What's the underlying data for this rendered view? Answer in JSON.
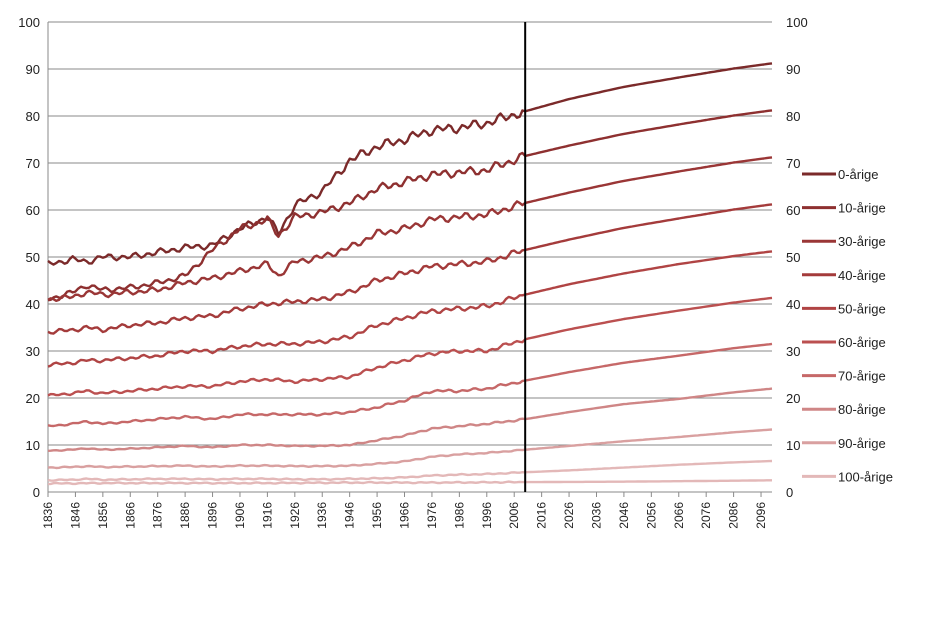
{
  "chart_data": {
    "type": "line",
    "title": "",
    "xlabel": "",
    "ylabel": "",
    "ylim": [
      0,
      100
    ],
    "xlim": [
      1836,
      2100
    ],
    "y_ticks": [
      0,
      10,
      20,
      30,
      40,
      50,
      60,
      70,
      80,
      90,
      100
    ],
    "y_tick_labels": [
      "0",
      "10",
      "20",
      "30",
      "40",
      "50",
      "60",
      "70",
      "80",
      "90",
      "100"
    ],
    "x_ticks": [
      "1836",
      "1846",
      "1856",
      "1866",
      "1876",
      "1886",
      "1896",
      "1906",
      "1916",
      "1926",
      "1936",
      "1946",
      "1956",
      "1966",
      "1976",
      "1986",
      "1996",
      "2006",
      "2016",
      "2026",
      "2036",
      "2046",
      "2056",
      "2066",
      "2076",
      "2086",
      "2096"
    ],
    "grid": "horizontal",
    "secondary_y_axis": true,
    "legend_position": "right",
    "vertical_marker_x": 2010,
    "series": [
      {
        "name": "0-årige",
        "color": "#7b2a2a",
        "points": [
          [
            1836,
            48.5
          ],
          [
            1845,
            49.5
          ],
          [
            1850,
            49
          ],
          [
            1856,
            50
          ],
          [
            1866,
            50
          ],
          [
            1876,
            51
          ],
          [
            1886,
            52
          ],
          [
            1896,
            52.5
          ],
          [
            1906,
            56
          ],
          [
            1916,
            58.5
          ],
          [
            1920,
            55
          ],
          [
            1926,
            61
          ],
          [
            1936,
            64
          ],
          [
            1946,
            70.5
          ],
          [
            1956,
            73.5
          ],
          [
            1966,
            75
          ],
          [
            1976,
            77
          ],
          [
            1986,
            77.5
          ],
          [
            1996,
            78.5
          ],
          [
            2010,
            81
          ],
          [
            2026,
            83.6
          ],
          [
            2046,
            86.2
          ],
          [
            2066,
            88.2
          ],
          [
            2086,
            90.1
          ],
          [
            2100,
            91.2
          ]
        ]
      },
      {
        "name": "10-årige",
        "color": "#8e3030",
        "points": [
          [
            1836,
            41
          ],
          [
            1845,
            42.5
          ],
          [
            1850,
            44
          ],
          [
            1856,
            43
          ],
          [
            1866,
            43.5
          ],
          [
            1876,
            44.5
          ],
          [
            1886,
            46
          ],
          [
            1896,
            51.5
          ],
          [
            1906,
            56
          ],
          [
            1916,
            58
          ],
          [
            1920,
            54.5
          ],
          [
            1926,
            58.5
          ],
          [
            1936,
            59.5
          ],
          [
            1946,
            61.5
          ],
          [
            1956,
            64.5
          ],
          [
            1966,
            66
          ],
          [
            1976,
            67.5
          ],
          [
            1986,
            68
          ],
          [
            1996,
            68.5
          ],
          [
            2010,
            71.5
          ],
          [
            2026,
            73.7
          ],
          [
            2046,
            76.2
          ],
          [
            2066,
            78.2
          ],
          [
            2086,
            80.1
          ],
          [
            2100,
            81.2
          ]
        ]
      },
      {
        "name": "30-årige",
        "color": "#9a3636",
        "points": [
          [
            1836,
            41
          ],
          [
            1845,
            41.5
          ],
          [
            1850,
            42.5
          ],
          [
            1856,
            42
          ],
          [
            1866,
            42.5
          ],
          [
            1876,
            43
          ],
          [
            1886,
            44.5
          ],
          [
            1896,
            45.5
          ],
          [
            1906,
            47
          ],
          [
            1916,
            48.5
          ],
          [
            1920,
            46
          ],
          [
            1926,
            49
          ],
          [
            1936,
            50
          ],
          [
            1946,
            52
          ],
          [
            1956,
            55
          ],
          [
            1966,
            56
          ],
          [
            1976,
            58
          ],
          [
            1986,
            58.5
          ],
          [
            1996,
            59
          ],
          [
            2010,
            61.5
          ],
          [
            2026,
            63.7
          ],
          [
            2046,
            66.2
          ],
          [
            2066,
            68.2
          ],
          [
            2086,
            70.1
          ],
          [
            2100,
            71.2
          ]
        ]
      },
      {
        "name": "40-årige",
        "color": "#a43b3b",
        "points": [
          [
            1836,
            34
          ],
          [
            1845,
            34.5
          ],
          [
            1850,
            35
          ],
          [
            1856,
            34.5
          ],
          [
            1866,
            35.5
          ],
          [
            1876,
            36
          ],
          [
            1886,
            37
          ],
          [
            1896,
            37.5
          ],
          [
            1906,
            39
          ],
          [
            1916,
            40
          ],
          [
            1926,
            40.5
          ],
          [
            1936,
            41
          ],
          [
            1946,
            42.5
          ],
          [
            1956,
            45
          ],
          [
            1966,
            46.5
          ],
          [
            1976,
            48
          ],
          [
            1986,
            48.5
          ],
          [
            1996,
            49
          ],
          [
            2010,
            51.5
          ],
          [
            2026,
            53.7
          ],
          [
            2046,
            56.2
          ],
          [
            2066,
            58.2
          ],
          [
            2086,
            60.1
          ],
          [
            2100,
            61.2
          ]
        ]
      },
      {
        "name": "50-årige",
        "color": "#b04444",
        "points": [
          [
            1836,
            27
          ],
          [
            1845,
            27.5
          ],
          [
            1850,
            28
          ],
          [
            1856,
            28
          ],
          [
            1866,
            28.5
          ],
          [
            1876,
            29
          ],
          [
            1886,
            30
          ],
          [
            1896,
            30
          ],
          [
            1906,
            31
          ],
          [
            1916,
            31.5
          ],
          [
            1926,
            31.5
          ],
          [
            1936,
            32
          ],
          [
            1946,
            33
          ],
          [
            1956,
            35.5
          ],
          [
            1966,
            37
          ],
          [
            1976,
            38.5
          ],
          [
            1986,
            39
          ],
          [
            1996,
            39.5
          ],
          [
            2010,
            42
          ],
          [
            2026,
            44.2
          ],
          [
            2046,
            46.5
          ],
          [
            2066,
            48.5
          ],
          [
            2086,
            50.2
          ],
          [
            2100,
            51.2
          ]
        ]
      },
      {
        "name": "60-årige",
        "color": "#bb5050",
        "points": [
          [
            1836,
            20.5
          ],
          [
            1845,
            21
          ],
          [
            1850,
            21.5
          ],
          [
            1856,
            21
          ],
          [
            1866,
            21.5
          ],
          [
            1876,
            22
          ],
          [
            1886,
            22.5
          ],
          [
            1896,
            22.5
          ],
          [
            1906,
            23.5
          ],
          [
            1916,
            24
          ],
          [
            1926,
            23.5
          ],
          [
            1936,
            24
          ],
          [
            1946,
            24.5
          ],
          [
            1956,
            26.5
          ],
          [
            1966,
            28
          ],
          [
            1976,
            29.5
          ],
          [
            1986,
            30
          ],
          [
            1996,
            30
          ],
          [
            2010,
            32.5
          ],
          [
            2026,
            34.6
          ],
          [
            2046,
            36.8
          ],
          [
            2066,
            38.6
          ],
          [
            2086,
            40.3
          ],
          [
            2100,
            41.3
          ]
        ]
      },
      {
        "name": "70-årige",
        "color": "#c66868",
        "points": [
          [
            1836,
            14
          ],
          [
            1845,
            14.5
          ],
          [
            1850,
            15
          ],
          [
            1856,
            14.5
          ],
          [
            1866,
            15
          ],
          [
            1876,
            15.5
          ],
          [
            1886,
            16
          ],
          [
            1896,
            15.5
          ],
          [
            1906,
            16.5
          ],
          [
            1916,
            16.5
          ],
          [
            1926,
            16.5
          ],
          [
            1936,
            16.5
          ],
          [
            1946,
            17
          ],
          [
            1956,
            18
          ],
          [
            1966,
            19.5
          ],
          [
            1976,
            21.5
          ],
          [
            1986,
            21.5
          ],
          [
            1996,
            22
          ],
          [
            2010,
            23.7
          ],
          [
            2026,
            25.5
          ],
          [
            2046,
            27.5
          ],
          [
            2066,
            29
          ],
          [
            2086,
            30.6
          ],
          [
            2100,
            31.5
          ]
        ]
      },
      {
        "name": "80-årige",
        "color": "#cf8686",
        "points": [
          [
            1836,
            8.8
          ],
          [
            1845,
            9
          ],
          [
            1850,
            9.3
          ],
          [
            1856,
            9
          ],
          [
            1866,
            9.2
          ],
          [
            1876,
            9.5
          ],
          [
            1886,
            9.8
          ],
          [
            1896,
            9.5
          ],
          [
            1906,
            10
          ],
          [
            1916,
            10
          ],
          [
            1926,
            9.8
          ],
          [
            1936,
            9.8
          ],
          [
            1946,
            10
          ],
          [
            1956,
            11
          ],
          [
            1966,
            12
          ],
          [
            1976,
            13.5
          ],
          [
            1986,
            14
          ],
          [
            1996,
            14.5
          ],
          [
            2010,
            15.5
          ],
          [
            2026,
            17
          ],
          [
            2046,
            18.7
          ],
          [
            2066,
            19.8
          ],
          [
            2086,
            21.2
          ],
          [
            2100,
            22
          ]
        ]
      },
      {
        "name": "90-årige",
        "color": "#d9a0a0",
        "points": [
          [
            1836,
            5.2
          ],
          [
            1845,
            5.3
          ],
          [
            1850,
            5.5
          ],
          [
            1856,
            5.3
          ],
          [
            1866,
            5.4
          ],
          [
            1876,
            5.5
          ],
          [
            1886,
            5.6
          ],
          [
            1896,
            5.4
          ],
          [
            1906,
            5.6
          ],
          [
            1916,
            5.6
          ],
          [
            1926,
            5.5
          ],
          [
            1936,
            5.5
          ],
          [
            1946,
            5.6
          ],
          [
            1956,
            6
          ],
          [
            1966,
            6.5
          ],
          [
            1976,
            7.5
          ],
          [
            1986,
            8
          ],
          [
            1996,
            8.3
          ],
          [
            2010,
            9
          ],
          [
            2026,
            9.8
          ],
          [
            2046,
            10.8
          ],
          [
            2066,
            11.7
          ],
          [
            2086,
            12.7
          ],
          [
            2100,
            13.3
          ]
        ]
      },
      {
        "name": "100-årige",
        "color": "#e3b8b8",
        "points": [
          [
            1836,
            2.5
          ],
          [
            1845,
            2.6
          ],
          [
            1850,
            2.8
          ],
          [
            1856,
            2.6
          ],
          [
            1866,
            2.7
          ],
          [
            1876,
            2.8
          ],
          [
            1886,
            2.8
          ],
          [
            1896,
            2.7
          ],
          [
            1906,
            2.8
          ],
          [
            1916,
            2.8
          ],
          [
            1926,
            2.7
          ],
          [
            1936,
            2.7
          ],
          [
            1946,
            2.8
          ],
          [
            1956,
            2.9
          ],
          [
            1966,
            3.1
          ],
          [
            1976,
            3.5
          ],
          [
            1986,
            3.7
          ],
          [
            1996,
            3.8
          ],
          [
            2010,
            4.2
          ],
          [
            2026,
            4.6
          ],
          [
            2046,
            5.2
          ],
          [
            2066,
            5.8
          ],
          [
            2086,
            6.3
          ],
          [
            2100,
            6.6
          ]
        ]
      },
      {
        "name": "",
        "color": "#e3b8b8",
        "points": [
          [
            1836,
            1.8
          ],
          [
            1856,
            1.9
          ],
          [
            1886,
            1.9
          ],
          [
            1916,
            1.9
          ],
          [
            1946,
            2
          ],
          [
            1976,
            2
          ],
          [
            2010,
            2.1
          ],
          [
            2046,
            2.2
          ],
          [
            2086,
            2.4
          ],
          [
            2100,
            2.5
          ]
        ]
      }
    ]
  }
}
